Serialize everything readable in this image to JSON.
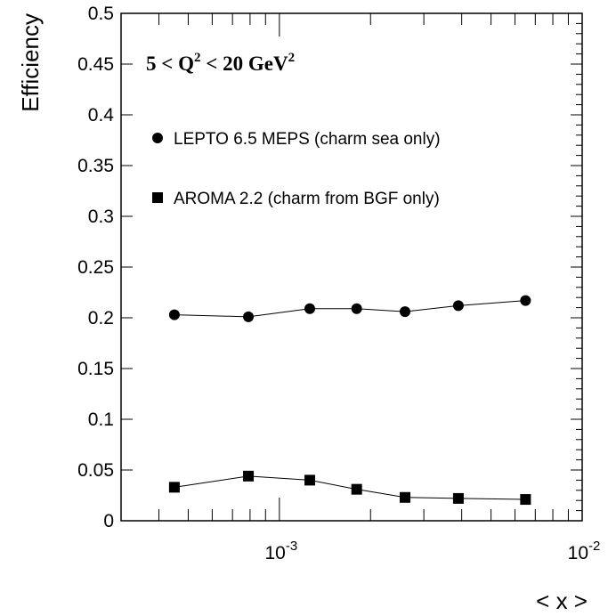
{
  "chart_data": {
    "type": "scatter",
    "xlabel": "< x >",
    "ylabel": "Efficiency",
    "xscale": "log",
    "xlim": [
      0.0003,
      0.01
    ],
    "ylim": [
      0,
      0.5
    ],
    "grid": false,
    "legend_position": "top-left",
    "annotation": {
      "base": "5 < Q",
      "exp1": "2",
      "mid": " < 20 GeV",
      "exp2": "2"
    },
    "yticks": [
      "0",
      "0.05",
      "0.1",
      "0.15",
      "0.2",
      "0.25",
      "0.3",
      "0.35",
      "0.4",
      "0.45",
      "0.5"
    ],
    "xticks": [
      {
        "base": "10",
        "exp": "-3",
        "value": 0.001
      },
      {
        "base": "10",
        "exp": "-2",
        "value": 0.01
      }
    ],
    "series": [
      {
        "name": "LEPTO 6.5 MEPS (charm sea only)",
        "marker": "circle",
        "x": [
          0.00045,
          0.00079,
          0.00126,
          0.0018,
          0.0026,
          0.0039,
          0.0065
        ],
        "y": [
          0.203,
          0.201,
          0.209,
          0.209,
          0.206,
          0.212,
          0.217
        ]
      },
      {
        "name": "AROMA 2.2 (charm from BGF only)",
        "marker": "square",
        "x": [
          0.00045,
          0.00079,
          0.00126,
          0.0018,
          0.0026,
          0.0039,
          0.0065
        ],
        "y": [
          0.033,
          0.044,
          0.04,
          0.031,
          0.023,
          0.022,
          0.021
        ]
      }
    ]
  }
}
